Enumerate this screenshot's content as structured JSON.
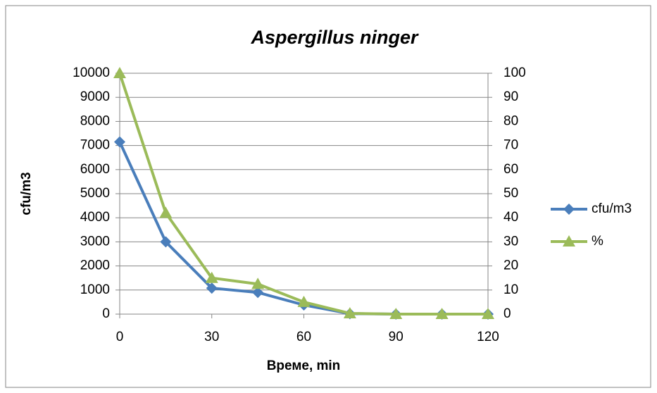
{
  "chart_data": {
    "type": "line",
    "title": "Aspergillus ninger",
    "x_label": "Време, min",
    "y_label": "cfu/m3",
    "x": [
      0,
      15,
      30,
      45,
      60,
      75,
      90,
      105,
      120
    ],
    "series": [
      {
        "name": "cfu/m3",
        "color": "#4a7ebb",
        "marker": "diamond",
        "values": [
          7150,
          3000,
          1080,
          900,
          380,
          20,
          0,
          0,
          0
        ]
      },
      {
        "name": "%",
        "color": "#9bbb59",
        "marker": "triangle",
        "axis": "y2",
        "values": [
          100,
          42,
          15,
          12.5,
          5,
          0.3,
          0,
          0,
          0
        ]
      }
    ],
    "xlim": [
      0,
      120
    ],
    "xticks": [
      0,
      30,
      60,
      90,
      120
    ],
    "ylim": [
      0,
      10000
    ],
    "yticks": [
      0,
      1000,
      2000,
      3000,
      4000,
      5000,
      6000,
      7000,
      8000,
      9000,
      10000
    ],
    "y2lim": [
      0,
      100
    ],
    "y2ticks": [
      0,
      10,
      20,
      30,
      40,
      50,
      60,
      70,
      80,
      90,
      100
    ],
    "grid": true,
    "legend": "right"
  }
}
